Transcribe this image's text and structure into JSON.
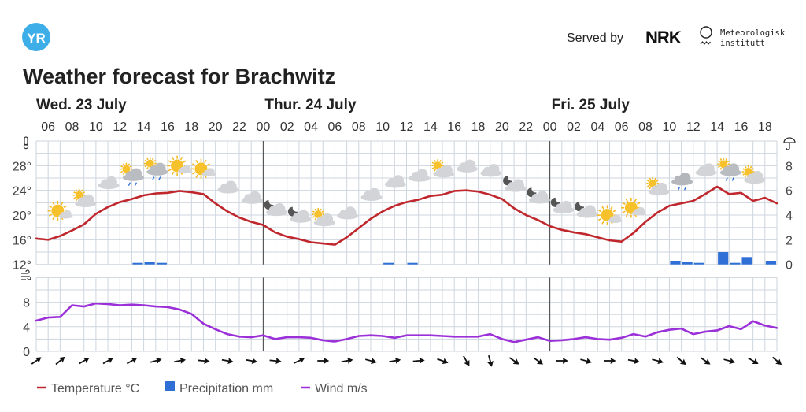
{
  "header": {
    "logo_text": "YR",
    "served_by": "Served by",
    "nrk_logo": "NRK",
    "met_line1": "Meteorologisk",
    "met_line2": "institutt",
    "title": "Weather forecast for Brachwitz"
  },
  "colors": {
    "temperature": "#c0272d",
    "precipitation": "#2f6fd6",
    "wind": "#9b30d9",
    "grid": "#cdd5de",
    "logo": "#3eaee8"
  },
  "chart_data": {
    "type": "line",
    "title": "Weather forecast for Brachwitz",
    "days": [
      {
        "label": "Wed. 23 July",
        "start_hour_index": 0
      },
      {
        "label": "Thur. 24 July",
        "start_hour_index": 19
      },
      {
        "label": "Fri. 25 July",
        "start_hour_index": 43
      }
    ],
    "x_start": "Wed 05:00",
    "x_end": "Fri 19:00",
    "hour_labels": [
      "06",
      "08",
      "10",
      "12",
      "14",
      "16",
      "18",
      "20",
      "22",
      "00",
      "02",
      "04",
      "06",
      "08",
      "10",
      "12",
      "14",
      "16",
      "18",
      "20",
      "22",
      "00",
      "02",
      "04",
      "06",
      "08",
      "10",
      "12",
      "14",
      "16",
      "18"
    ],
    "temperature_axis": {
      "ticks": [
        "12°",
        "16°",
        "20°",
        "24°",
        "28°"
      ],
      "range": [
        12,
        32
      ]
    },
    "precipitation_axis": {
      "ticks": [
        "0",
        "2",
        "4",
        "6",
        "8"
      ],
      "range": [
        0,
        10
      ]
    },
    "wind_axis": {
      "ticks": [
        "0",
        "4",
        "8"
      ],
      "range": [
        0,
        12
      ]
    },
    "series": [
      {
        "name": "Temperature °C",
        "values": [
          16.2,
          16.0,
          16.6,
          17.5,
          18.5,
          20.2,
          21.3,
          22.1,
          22.6,
          23.2,
          23.5,
          23.6,
          23.9,
          23.7,
          23.4,
          21.9,
          20.6,
          19.6,
          18.9,
          18.4,
          17.2,
          16.5,
          16.1,
          15.6,
          15.4,
          15.2,
          16.4,
          17.9,
          19.4,
          20.6,
          21.5,
          22.1,
          22.5,
          23.1,
          23.3,
          23.9,
          24.0,
          23.8,
          23.3,
          22.6,
          21.1,
          20.0,
          19.2,
          18.2,
          17.6,
          17.2,
          16.9,
          16.4,
          15.9,
          15.7,
          17.1,
          18.9,
          20.4,
          21.5,
          21.9,
          22.3,
          23.4,
          24.6,
          23.4,
          23.6,
          22.3,
          22.8,
          21.9
        ]
      },
      {
        "name": "Precipitation mm",
        "values": [
          0,
          0,
          0,
          0,
          0,
          0,
          0,
          0,
          0.1,
          0.2,
          0.1,
          0,
          0,
          0,
          0,
          0,
          0,
          0,
          0,
          0,
          0,
          0,
          0,
          0,
          0,
          0,
          0,
          0,
          0,
          0.1,
          0,
          0.1,
          0,
          0,
          0,
          0,
          0,
          0,
          0,
          0,
          0,
          0,
          0,
          0,
          0,
          0,
          0,
          0,
          0,
          0,
          0,
          0,
          0,
          0.3,
          0.2,
          0.1,
          0,
          1.0,
          0.1,
          0.6,
          0,
          0.3
        ]
      },
      {
        "name": "Wind m/s",
        "values": [
          5.0,
          5.5,
          5.6,
          7.5,
          7.3,
          7.8,
          7.7,
          7.5,
          7.6,
          7.5,
          7.3,
          7.2,
          6.8,
          6.1,
          4.5,
          3.6,
          2.8,
          2.4,
          2.3,
          2.6,
          2.0,
          2.3,
          2.3,
          2.2,
          1.8,
          1.6,
          2.0,
          2.5,
          2.6,
          2.5,
          2.2,
          2.6,
          2.6,
          2.6,
          2.5,
          2.4,
          2.4,
          2.4,
          2.8,
          2.0,
          1.5,
          1.9,
          2.3,
          1.7,
          1.8,
          2.0,
          2.3,
          2.0,
          1.9,
          2.2,
          2.8,
          2.4,
          3.1,
          3.5,
          3.7,
          2.8,
          3.2,
          3.4,
          4.1,
          3.6,
          4.9,
          4.2,
          3.8
        ]
      }
    ],
    "wind_direction_rotation_deg_every_2h": [
      -35,
      -40,
      -30,
      -30,
      -30,
      -15,
      -10,
      5,
      10,
      10,
      5,
      -25,
      0,
      -10,
      15,
      -10,
      -5,
      20,
      60,
      75,
      35,
      35,
      0,
      15,
      0,
      10,
      15,
      40,
      35,
      15,
      30,
      40
    ],
    "weather_symbols_every_2h_from_07": [
      "fair-day",
      "partlycloudy-day",
      "cloudy",
      "rainshowers-day",
      "rainshowers-day",
      "fair-day",
      "fair-day",
      "cloudy",
      "cloudy",
      "partlycloudy-night",
      "partlycloudy-night",
      "partlycloudy-day",
      "cloudy",
      "cloudy",
      "cloudy",
      "cloudy",
      "partlycloudy-day",
      "cloudy",
      "cloudy",
      "partlycloudy-night",
      "partlycloudy-night",
      "partlycloudy-night",
      "partlycloudy-night",
      "fair-day",
      "fair-day",
      "partlycloudy-day",
      "rain",
      "cloudy",
      "rainshowers-day",
      "partlycloudy-day"
    ],
    "legend": [
      {
        "label": "Temperature °C",
        "icon": "line"
      },
      {
        "label": "Precipitation mm",
        "icon": "square"
      },
      {
        "label": "Wind m/s",
        "icon": "line"
      }
    ],
    "legend_position": "bottom-left",
    "grid": true
  }
}
